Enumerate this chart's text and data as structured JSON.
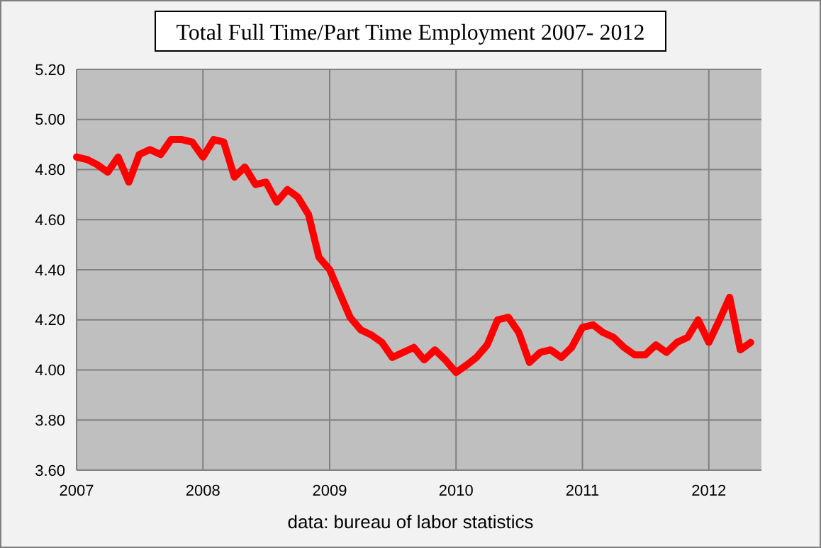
{
  "chart_data": {
    "type": "line",
    "title": "Total Full Time/Part Time Employment  2007- 2012",
    "x": [
      "2007-01",
      "2007-02",
      "2007-03",
      "2007-04",
      "2007-05",
      "2007-06",
      "2007-07",
      "2007-08",
      "2007-09",
      "2007-10",
      "2007-11",
      "2007-12",
      "2008-01",
      "2008-02",
      "2008-03",
      "2008-04",
      "2008-05",
      "2008-06",
      "2008-07",
      "2008-08",
      "2008-09",
      "2008-10",
      "2008-11",
      "2008-12",
      "2009-01",
      "2009-02",
      "2009-03",
      "2009-04",
      "2009-05",
      "2009-06",
      "2009-07",
      "2009-08",
      "2009-09",
      "2009-10",
      "2009-11",
      "2009-12",
      "2010-01",
      "2010-02",
      "2010-03",
      "2010-04",
      "2010-05",
      "2010-06",
      "2010-07",
      "2010-08",
      "2010-09",
      "2010-10",
      "2010-11",
      "2010-12",
      "2011-01",
      "2011-02",
      "2011-03",
      "2011-04",
      "2011-05",
      "2011-06",
      "2011-07",
      "2011-08",
      "2011-09",
      "2011-10",
      "2011-11",
      "2011-12",
      "2012-01",
      "2012-02",
      "2012-03",
      "2012-04",
      "2012-05"
    ],
    "series": [
      {
        "color": "#ff0000",
        "values": [
          4.85,
          4.84,
          4.82,
          4.79,
          4.85,
          4.75,
          4.86,
          4.88,
          4.86,
          4.92,
          4.92,
          4.91,
          4.85,
          4.92,
          4.91,
          4.77,
          4.81,
          4.74,
          4.75,
          4.67,
          4.72,
          4.69,
          4.62,
          4.45,
          4.4,
          4.3,
          4.21,
          4.16,
          4.14,
          4.11,
          4.05,
          4.07,
          4.09,
          4.04,
          4.08,
          4.04,
          3.99,
          4.02,
          4.05,
          4.1,
          4.2,
          4.21,
          4.15,
          4.03,
          4.07,
          4.08,
          4.05,
          4.09,
          4.17,
          4.18,
          4.15,
          4.13,
          4.09,
          4.06,
          4.06,
          4.1,
          4.07,
          4.11,
          4.13,
          4.2,
          4.11,
          4.2,
          4.29,
          4.08,
          4.11
        ]
      }
    ],
    "xlim": [
      "2007",
      "2012-06"
    ],
    "xticks": [
      "2007",
      "2008",
      "2009",
      "2010",
      "2011",
      "2012"
    ],
    "ylim": [
      3.6,
      5.2
    ],
    "yticks": [
      {
        "value": 3.6,
        "label": "3.60"
      },
      {
        "value": 3.8,
        "label": "3.80"
      },
      {
        "value": 4.0,
        "label": "4.00"
      },
      {
        "value": 4.2,
        "label": "4.20"
      },
      {
        "value": 4.4,
        "label": "4.40"
      },
      {
        "value": 4.6,
        "label": "4.60"
      },
      {
        "value": 4.8,
        "label": "4.80"
      },
      {
        "value": 5.0,
        "label": "5.00"
      },
      {
        "value": 5.2,
        "label": "5.20"
      }
    ],
    "grid": true,
    "marker": "none",
    "line_style": "solid",
    "annotations": [
      "data: bureau of labor statistics"
    ]
  }
}
